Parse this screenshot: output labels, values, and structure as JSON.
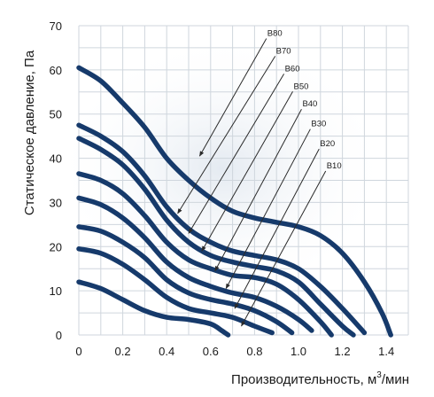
{
  "chart_data": {
    "type": "line",
    "xlabel": "Производительность, м³/мин",
    "xlabel_main": "Производительность, м",
    "xlabel_sup": "3",
    "xlabel_tail": "/мин",
    "ylabel": "Статическое давление, Па",
    "xlim": [
      0,
      1.5
    ],
    "ylim": [
      0,
      70
    ],
    "x_ticks": [
      "0",
      "0.2",
      "0.4",
      "0.6",
      "0.8",
      "1.0",
      "1.2",
      "1.4"
    ],
    "y_ticks": [
      "0",
      "10",
      "20",
      "30",
      "40",
      "50",
      "60",
      "70"
    ],
    "grid": true,
    "series": [
      {
        "name": "B80",
        "label_xy": [
          0.87,
          67.5
        ],
        "arrow_to": [
          0.55,
          40.5
        ],
        "points": [
          [
            0.0,
            60.5
          ],
          [
            0.1,
            57.5
          ],
          [
            0.2,
            52.5
          ],
          [
            0.3,
            47
          ],
          [
            0.4,
            40
          ],
          [
            0.5,
            35
          ],
          [
            0.6,
            31
          ],
          [
            0.7,
            28
          ],
          [
            0.8,
            26.5
          ],
          [
            0.9,
            25.5
          ],
          [
            1.0,
            24.5
          ],
          [
            1.1,
            22.5
          ],
          [
            1.2,
            18.5
          ],
          [
            1.3,
            12
          ],
          [
            1.38,
            5
          ],
          [
            1.42,
            0
          ]
        ]
      },
      {
        "name": "B70",
        "label_xy": [
          0.91,
          63.5
        ],
        "arrow_to": [
          0.45,
          27.5
        ],
        "points": [
          [
            0.0,
            47.5
          ],
          [
            0.1,
            45
          ],
          [
            0.2,
            41.5
          ],
          [
            0.3,
            36
          ],
          [
            0.4,
            29
          ],
          [
            0.5,
            24
          ],
          [
            0.6,
            21
          ],
          [
            0.7,
            19
          ],
          [
            0.8,
            18
          ],
          [
            0.9,
            17
          ],
          [
            1.0,
            15
          ],
          [
            1.1,
            11
          ],
          [
            1.2,
            6
          ],
          [
            1.3,
            0.5
          ]
        ]
      },
      {
        "name": "B60",
        "label_xy": [
          0.95,
          59.5
        ],
        "arrow_to": [
          0.5,
          23
        ],
        "points": [
          [
            0.0,
            44.5
          ],
          [
            0.1,
            42
          ],
          [
            0.2,
            38.5
          ],
          [
            0.3,
            33
          ],
          [
            0.4,
            26
          ],
          [
            0.5,
            21
          ],
          [
            0.6,
            18
          ],
          [
            0.7,
            16.5
          ],
          [
            0.8,
            15.5
          ],
          [
            0.9,
            14.5
          ],
          [
            1.0,
            12
          ],
          [
            1.1,
            7
          ],
          [
            1.2,
            2
          ],
          [
            1.25,
            0
          ]
        ]
      },
      {
        "name": "B50",
        "label_xy": [
          0.99,
          55.5
        ],
        "arrow_to": [
          0.56,
          19
        ],
        "points": [
          [
            0.0,
            36.5
          ],
          [
            0.1,
            35
          ],
          [
            0.2,
            32
          ],
          [
            0.3,
            27
          ],
          [
            0.4,
            21
          ],
          [
            0.5,
            17
          ],
          [
            0.6,
            15
          ],
          [
            0.7,
            13.5
          ],
          [
            0.8,
            13
          ],
          [
            0.9,
            11.5
          ],
          [
            1.0,
            8
          ],
          [
            1.1,
            3
          ],
          [
            1.15,
            0
          ]
        ]
      },
      {
        "name": "B40",
        "label_xy": [
          1.03,
          51.5
        ],
        "arrow_to": [
          0.62,
          14.5
        ],
        "points": [
          [
            0.0,
            31
          ],
          [
            0.1,
            29.5
          ],
          [
            0.2,
            26.5
          ],
          [
            0.3,
            22
          ],
          [
            0.4,
            16.5
          ],
          [
            0.5,
            13
          ],
          [
            0.6,
            11
          ],
          [
            0.7,
            9.5
          ],
          [
            0.8,
            8.5
          ],
          [
            0.9,
            6.5
          ],
          [
            1.0,
            3.5
          ],
          [
            1.06,
            1
          ]
        ]
      },
      {
        "name": "B30",
        "label_xy": [
          1.07,
          47
        ],
        "arrow_to": [
          0.67,
          10.5
        ],
        "points": [
          [
            0.0,
            24.5
          ],
          [
            0.1,
            23.5
          ],
          [
            0.2,
            21
          ],
          [
            0.3,
            17.5
          ],
          [
            0.4,
            12.5
          ],
          [
            0.5,
            9.5
          ],
          [
            0.6,
            8
          ],
          [
            0.7,
            7
          ],
          [
            0.8,
            5.5
          ],
          [
            0.9,
            3
          ],
          [
            0.97,
            0.5
          ]
        ]
      },
      {
        "name": "B20",
        "label_xy": [
          1.11,
          42.5
        ],
        "arrow_to": [
          0.71,
          6
        ],
        "points": [
          [
            0.0,
            19.5
          ],
          [
            0.1,
            18.5
          ],
          [
            0.2,
            16
          ],
          [
            0.3,
            12.5
          ],
          [
            0.4,
            8.5
          ],
          [
            0.5,
            6
          ],
          [
            0.6,
            5
          ],
          [
            0.7,
            4
          ],
          [
            0.8,
            2
          ],
          [
            0.88,
            0.5
          ]
        ]
      },
      {
        "name": "B10",
        "label_xy": [
          1.14,
          37.5
        ],
        "arrow_to": [
          0.74,
          2
        ],
        "points": [
          [
            0.0,
            12
          ],
          [
            0.1,
            10.5
          ],
          [
            0.2,
            8
          ],
          [
            0.3,
            5.5
          ],
          [
            0.4,
            4
          ],
          [
            0.5,
            3.5
          ],
          [
            0.6,
            2.5
          ],
          [
            0.65,
            1
          ],
          [
            0.68,
            0
          ]
        ]
      }
    ]
  }
}
